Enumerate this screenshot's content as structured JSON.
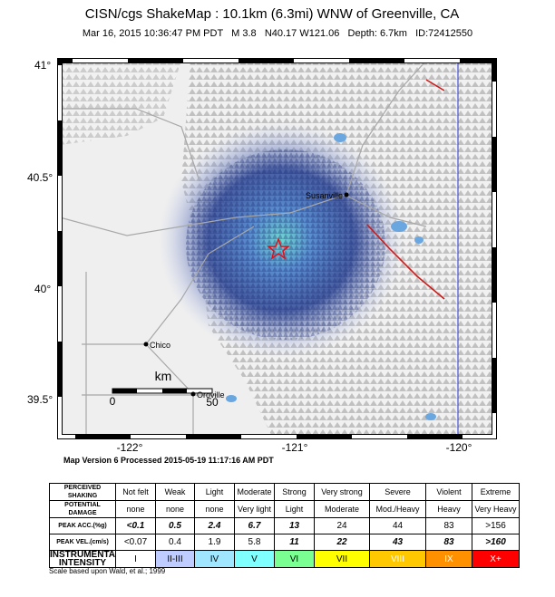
{
  "header": {
    "title": "CISN/cgs ShakeMap : 10.1km (6.3mi) WNW of Greenville, CA",
    "subtitle": "Mar 16, 2015 10:36:47 PM PDT   M 3.8   N40.17 W121.06   Depth: 6.7km   ID:72412550"
  },
  "map": {
    "lat_labels": [
      "41°",
      "40.5°",
      "40°",
      "39.5°"
    ],
    "lon_labels": [
      "-122°",
      "-121°",
      "-120°"
    ],
    "places": [
      "Susanville",
      "Chico",
      "Oroville"
    ],
    "scale": {
      "unit": "km",
      "start": "0",
      "end": "50"
    }
  },
  "footer": {
    "version": "Map Version 6 Processed 2015-05-19 11:17:16 AM PDT"
  },
  "legend": {
    "rows": [
      [
        "PERCEIVED SHAKING",
        "Not felt",
        "Weak",
        "Light",
        "Moderate",
        "Strong",
        "Very strong",
        "Severe",
        "Violent",
        "Extreme"
      ],
      [
        "POTENTIAL DAMAGE",
        "none",
        "none",
        "none",
        "Very light",
        "Light",
        "Moderate",
        "Mod./Heavy",
        "Heavy",
        "Very Heavy"
      ],
      [
        "PEAK ACC.(%g)",
        "<0.1",
        "0.5",
        "2.4",
        "6.7",
        "13",
        "24",
        "44",
        "83",
        ">156"
      ],
      [
        "PEAK VEL.(cm/s)",
        "<0.07",
        "0.4",
        "1.9",
        "5.8",
        "11",
        "22",
        "43",
        "83",
        ">160"
      ],
      [
        "INSTRUMENTAL INTENSITY",
        "I",
        "II-III",
        "IV",
        "V",
        "VI",
        "VII",
        "VIII",
        "IX",
        "X+"
      ]
    ],
    "note": "Scale based upon Wald, et al.; 1999"
  }
}
